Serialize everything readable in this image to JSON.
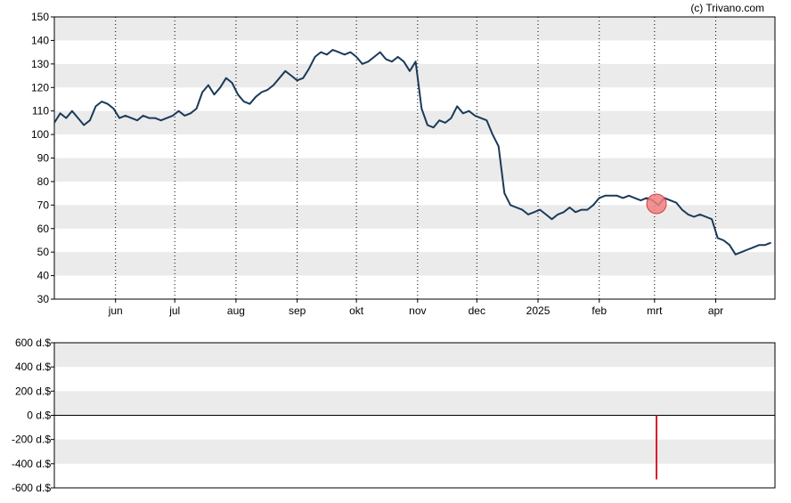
{
  "credit": "(c) Trivano.com",
  "colors": {
    "line": "#1a3a5a",
    "band": "#ebebeb",
    "marker_fill": "#f08080",
    "marker_stroke": "#d04040",
    "volume_bar": "#d81e2a",
    "axis": "#000000"
  },
  "chart_data": [
    {
      "type": "line",
      "title": "",
      "ylim": [
        30,
        150
      ],
      "yticks": [
        30,
        40,
        50,
        60,
        70,
        80,
        90,
        100,
        110,
        120,
        130,
        140,
        150
      ],
      "grid": "horizontal bands, dotted vertical month lines",
      "xlim": [
        "2024-05-01",
        "2025-05-01"
      ],
      "months": [
        {
          "label": "jun",
          "date": "2024-06-01"
        },
        {
          "label": "jul",
          "date": "2024-07-01"
        },
        {
          "label": "aug",
          "date": "2024-08-01"
        },
        {
          "label": "sep",
          "date": "2024-09-01"
        },
        {
          "label": "okt",
          "date": "2024-10-01"
        },
        {
          "label": "nov",
          "date": "2024-11-01"
        },
        {
          "label": "dec",
          "date": "2024-12-01"
        },
        {
          "label": "2025",
          "date": "2025-01-01"
        },
        {
          "label": "feb",
          "date": "2025-02-01"
        },
        {
          "label": "mrt",
          "date": "2025-03-01"
        },
        {
          "label": "apr",
          "date": "2025-04-01"
        }
      ],
      "series": [
        {
          "points": [
            [
              "2024-05-01",
              105
            ],
            [
              "2024-05-04",
              109
            ],
            [
              "2024-05-07",
              107
            ],
            [
              "2024-05-10",
              110
            ],
            [
              "2024-05-13",
              107
            ],
            [
              "2024-05-16",
              104
            ],
            [
              "2024-05-19",
              106
            ],
            [
              "2024-05-22",
              112
            ],
            [
              "2024-05-25",
              114
            ],
            [
              "2024-05-28",
              113
            ],
            [
              "2024-05-31",
              111
            ],
            [
              "2024-06-03",
              107
            ],
            [
              "2024-06-06",
              108
            ],
            [
              "2024-06-09",
              107
            ],
            [
              "2024-06-12",
              106
            ],
            [
              "2024-06-15",
              108
            ],
            [
              "2024-06-18",
              107
            ],
            [
              "2024-06-21",
              107
            ],
            [
              "2024-06-24",
              106
            ],
            [
              "2024-06-27",
              107
            ],
            [
              "2024-06-30",
              108
            ],
            [
              "2024-07-03",
              110
            ],
            [
              "2024-07-06",
              108
            ],
            [
              "2024-07-09",
              109
            ],
            [
              "2024-07-12",
              111
            ],
            [
              "2024-07-15",
              118
            ],
            [
              "2024-07-18",
              121
            ],
            [
              "2024-07-21",
              117
            ],
            [
              "2024-07-24",
              120
            ],
            [
              "2024-07-27",
              124
            ],
            [
              "2024-07-30",
              122
            ],
            [
              "2024-08-02",
              117
            ],
            [
              "2024-08-05",
              114
            ],
            [
              "2024-08-08",
              113
            ],
            [
              "2024-08-11",
              116
            ],
            [
              "2024-08-14",
              118
            ],
            [
              "2024-08-17",
              119
            ],
            [
              "2024-08-20",
              121
            ],
            [
              "2024-08-23",
              124
            ],
            [
              "2024-08-26",
              127
            ],
            [
              "2024-08-29",
              125
            ],
            [
              "2024-09-01",
              123
            ],
            [
              "2024-09-04",
              124
            ],
            [
              "2024-09-07",
              128
            ],
            [
              "2024-09-10",
              133
            ],
            [
              "2024-09-13",
              135
            ],
            [
              "2024-09-16",
              134
            ],
            [
              "2024-09-19",
              136
            ],
            [
              "2024-09-22",
              135
            ],
            [
              "2024-09-25",
              134
            ],
            [
              "2024-09-28",
              135
            ],
            [
              "2024-10-01",
              133
            ],
            [
              "2024-10-04",
              130
            ],
            [
              "2024-10-07",
              131
            ],
            [
              "2024-10-10",
              133
            ],
            [
              "2024-10-13",
              135
            ],
            [
              "2024-10-16",
              132
            ],
            [
              "2024-10-19",
              131
            ],
            [
              "2024-10-22",
              133
            ],
            [
              "2024-10-25",
              131
            ],
            [
              "2024-10-28",
              127
            ],
            [
              "2024-10-31",
              131
            ],
            [
              "2024-11-03",
              111
            ],
            [
              "2024-11-06",
              104
            ],
            [
              "2024-11-09",
              103
            ],
            [
              "2024-11-12",
              106
            ],
            [
              "2024-11-15",
              105
            ],
            [
              "2024-11-18",
              107
            ],
            [
              "2024-11-21",
              112
            ],
            [
              "2024-11-24",
              109
            ],
            [
              "2024-11-27",
              110
            ],
            [
              "2024-11-30",
              108
            ],
            [
              "2024-12-03",
              107
            ],
            [
              "2024-12-06",
              106
            ],
            [
              "2024-12-09",
              100
            ],
            [
              "2024-12-12",
              95
            ],
            [
              "2024-12-15",
              75
            ],
            [
              "2024-12-18",
              70
            ],
            [
              "2024-12-21",
              69
            ],
            [
              "2024-12-24",
              68
            ],
            [
              "2024-12-27",
              66
            ],
            [
              "2024-12-30",
              67
            ],
            [
              "2025-01-02",
              68
            ],
            [
              "2025-01-05",
              66
            ],
            [
              "2025-01-08",
              64
            ],
            [
              "2025-01-11",
              66
            ],
            [
              "2025-01-14",
              67
            ],
            [
              "2025-01-17",
              69
            ],
            [
              "2025-01-20",
              67
            ],
            [
              "2025-01-23",
              68
            ],
            [
              "2025-01-26",
              68
            ],
            [
              "2025-01-29",
              70
            ],
            [
              "2025-02-01",
              73
            ],
            [
              "2025-02-04",
              74
            ],
            [
              "2025-02-07",
              74
            ],
            [
              "2025-02-10",
              74
            ],
            [
              "2025-02-13",
              73
            ],
            [
              "2025-02-16",
              74
            ],
            [
              "2025-02-19",
              73
            ],
            [
              "2025-02-22",
              72
            ],
            [
              "2025-02-25",
              73
            ],
            [
              "2025-02-28",
              72
            ],
            [
              "2025-03-03",
              70
            ],
            [
              "2025-03-06",
              73
            ],
            [
              "2025-03-09",
              72
            ],
            [
              "2025-03-12",
              71
            ],
            [
              "2025-03-15",
              68
            ],
            [
              "2025-03-18",
              66
            ],
            [
              "2025-03-21",
              65
            ],
            [
              "2025-03-24",
              66
            ],
            [
              "2025-03-27",
              65
            ],
            [
              "2025-03-30",
              64
            ],
            [
              "2025-04-02",
              56
            ],
            [
              "2025-04-05",
              55
            ],
            [
              "2025-04-08",
              53
            ],
            [
              "2025-04-11",
              49
            ],
            [
              "2025-04-14",
              50
            ],
            [
              "2025-04-17",
              51
            ],
            [
              "2025-04-20",
              52
            ],
            [
              "2025-04-23",
              53
            ],
            [
              "2025-04-26",
              53
            ],
            [
              "2025-04-29",
              54
            ]
          ]
        }
      ],
      "markers": [
        {
          "x": "2025-03-02",
          "y": 70.5
        }
      ]
    },
    {
      "type": "bar",
      "title": "",
      "ylim": [
        -600,
        600
      ],
      "yticks": [
        {
          "value": 600,
          "label": "600 d.$"
        },
        {
          "value": 400,
          "label": "400 d.$"
        },
        {
          "value": 200,
          "label": "200 d.$"
        },
        {
          "value": 0,
          "label": "0 d.$"
        },
        {
          "value": -200,
          "label": "-200 d.$"
        },
        {
          "value": -400,
          "label": "-400 d.$"
        },
        {
          "value": -600,
          "label": "-600 d.$"
        }
      ],
      "bars": [
        {
          "x": "2025-03-02",
          "value": -530
        }
      ]
    }
  ]
}
